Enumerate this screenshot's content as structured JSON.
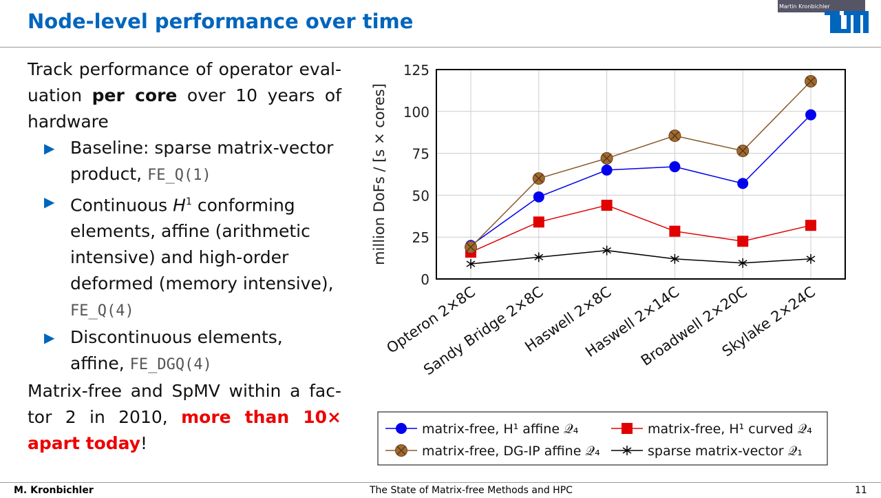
{
  "slide": {
    "title": "Node-level performance over time",
    "author": "M. Kronbichler",
    "talk_title": "The State of Matrix-free Methods and HPC",
    "page": "11",
    "webcam_name": "Martin Kronbichler",
    "logo": "TUM"
  },
  "text": {
    "intro_a": "Track performance of operator eval- uation ",
    "intro_b": "per core",
    "intro_c": " over 10 years of hardware",
    "b1": "Baseline: sparse matrix-vector product, ",
    "b1_code": "FE_Q(1)",
    "b2_a": "Continuous ",
    "b2_h": "H",
    "b2_sup": "1",
    "b2_b": " conforming elements, affine (arithmetic intensive) and high-order deformed (memory intensive), ",
    "b2_code": "FE_Q(4)",
    "b3": "Discontinuous elements, affine, ",
    "b3_code": "FE_DGQ(4)",
    "concl_a": "Matrix-free and SpMV within a fac- tor 2 in 2010, ",
    "concl_b": "more than 10× apart today",
    "concl_c": "!"
  },
  "chart_data": {
    "type": "line",
    "ylabel": "million DoFs / [s × cores]",
    "ylim": [
      0,
      125
    ],
    "yticks": [
      0,
      25,
      50,
      75,
      100,
      125
    ],
    "grid": true,
    "legend_placement": "bottom",
    "categories": [
      "Opteron 2×8C",
      "Sandy Bridge 2×8C",
      "Haswell 2×8C",
      "Haswell 2×14C",
      "Broadwell 2×20C",
      "Skylake 2×24C"
    ],
    "series": [
      {
        "name": "matrix-free, H¹ affine 𝒬₄",
        "color": "#0000ee",
        "marker": "circle",
        "values": [
          20,
          49,
          65,
          67,
          57,
          98
        ]
      },
      {
        "name": "matrix-free, H¹ curved 𝒬₄",
        "color": "#e00000",
        "marker": "square",
        "values": [
          16,
          34,
          44,
          28.5,
          22.5,
          32
        ]
      },
      {
        "name": "matrix-free, DG-IP affine 𝒬₄",
        "color": "#8b5a2b",
        "marker": "circle-x",
        "values": [
          19,
          60,
          72,
          85.5,
          76.5,
          118
        ]
      },
      {
        "name": "sparse matrix-vector 𝒬₁",
        "color": "#000000",
        "marker": "star",
        "values": [
          9,
          13,
          17,
          12,
          9.5,
          12
        ]
      }
    ]
  }
}
